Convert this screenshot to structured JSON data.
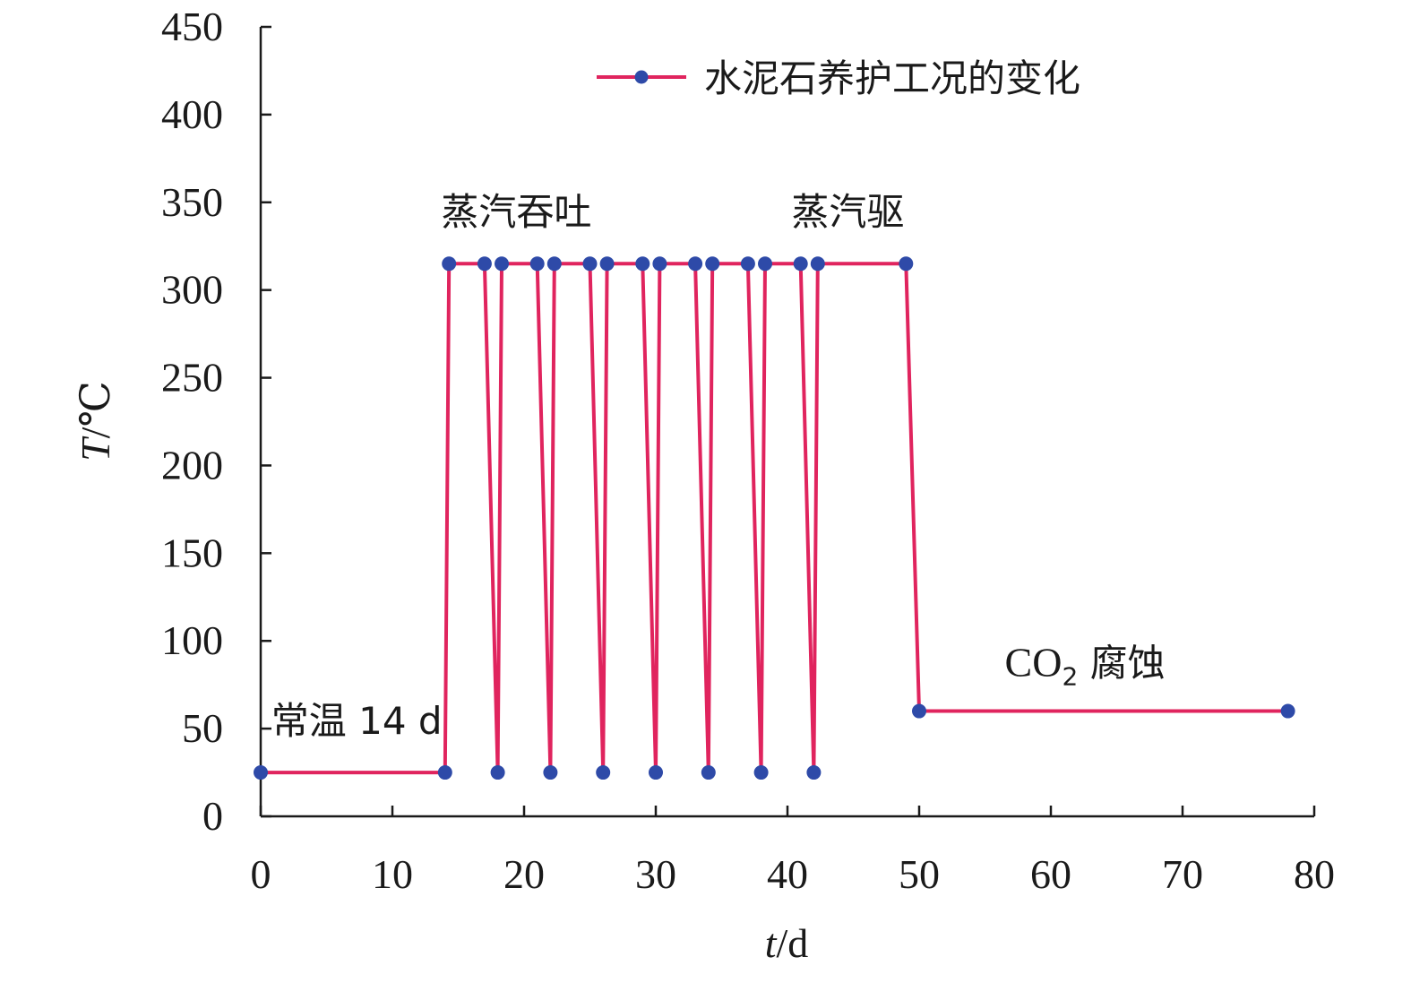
{
  "chart_data": {
    "type": "line",
    "xlabel_var": "t",
    "xlabel_unit": "/d",
    "ylabel_var": "T",
    "ylabel_unit": "/℃",
    "xlim": [
      0,
      80
    ],
    "ylim": [
      0,
      450
    ],
    "x_ticks": [
      0,
      10,
      20,
      30,
      40,
      50,
      60,
      70,
      80
    ],
    "y_ticks": [
      0,
      50,
      100,
      150,
      200,
      250,
      300,
      350,
      400,
      450
    ],
    "grid": false,
    "legend_position": "top-right",
    "colors": {
      "line": "#e0245e",
      "marker": "#2e4aa8",
      "axis": "#1a1a1a"
    },
    "series": [
      {
        "name": "水泥石养护工况的变化",
        "x": [
          0,
          14,
          14.3,
          17,
          18,
          18.3,
          21,
          22,
          22.3,
          25,
          26,
          26.3,
          29,
          30,
          30.3,
          33,
          34,
          34.3,
          37,
          38,
          38.3,
          41,
          42,
          42.3,
          49,
          50,
          78
        ],
        "y": [
          25,
          25,
          315,
          315,
          25,
          315,
          315,
          25,
          315,
          315,
          25,
          315,
          315,
          25,
          315,
          315,
          25,
          315,
          315,
          25,
          315,
          315,
          25,
          315,
          315,
          60,
          60
        ]
      }
    ],
    "annotations": [
      {
        "text": "常温 14 d",
        "x": 0.8,
        "y": 47
      },
      {
        "text": "蒸汽吞吐",
        "x": 13.7,
        "y": 337
      },
      {
        "text": "蒸汽驱",
        "x": 40.3,
        "y": 337
      },
      {
        "text": "CO",
        "sub": "2",
        "tail": " 腐蚀",
        "x": 56.5,
        "y": 80
      }
    ]
  }
}
